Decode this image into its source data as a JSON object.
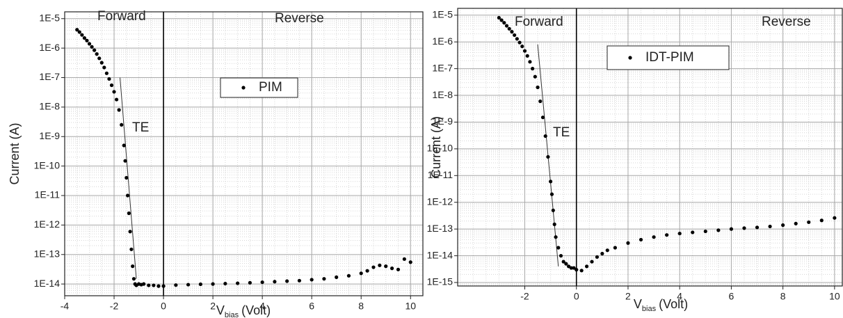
{
  "chart_data": [
    {
      "type": "scatter",
      "log_y": true,
      "grid": true,
      "vline": 0,
      "annotations": [
        "Forward",
        "Reverse",
        "TE"
      ],
      "ylabel": "Current (A)",
      "xlabel": {
        "main": "V",
        "sub": "bias",
        "unit": "(Volt)"
      },
      "xlim": [
        -4,
        10.5
      ],
      "xticks": [
        -4,
        -2,
        0,
        2,
        4,
        6,
        8,
        10
      ],
      "ylim": [
        4e-15,
        1.7e-05
      ],
      "yticks": [
        {
          "value": 1e-14,
          "label": "1E-14"
        },
        {
          "value": 1e-13,
          "label": "1E-13"
        },
        {
          "value": 1e-12,
          "label": "1E-12"
        },
        {
          "value": 1e-11,
          "label": "1E-11"
        },
        {
          "value": 1e-10,
          "label": "1E-10"
        },
        {
          "value": 1e-09,
          "label": "1E-9"
        },
        {
          "value": 1e-08,
          "label": "1E-8"
        },
        {
          "value": 1e-07,
          "label": "1E-7"
        },
        {
          "value": 1e-06,
          "label": "1E-6"
        },
        {
          "value": 1e-05,
          "label": "1E-5"
        }
      ],
      "fit": {
        "x": [
          -1.76,
          -1.1
        ],
        "values": [
          1e-07,
          1.5e-14
        ]
      },
      "series": [
        {
          "name": "PIM",
          "color": "#000000",
          "x": [
            -3.5,
            -3.4,
            -3.3,
            -3.2,
            -3.1,
            -3.0,
            -2.9,
            -2.8,
            -2.7,
            -2.6,
            -2.5,
            -2.4,
            -2.3,
            -2.2,
            -2.1,
            -2.0,
            -1.9,
            -1.8,
            -1.7,
            -1.6,
            -1.55,
            -1.5,
            -1.45,
            -1.4,
            -1.35,
            -1.3,
            -1.25,
            -1.2,
            -1.15,
            -1.1,
            -1.0,
            -0.9,
            -0.8,
            -0.6,
            -0.4,
            -0.2,
            0,
            0.5,
            1,
            1.5,
            2,
            2.5,
            3,
            3.5,
            4,
            4.5,
            5,
            5.5,
            6,
            6.5,
            7,
            7.5,
            8,
            8.25,
            8.5,
            8.75,
            9,
            9.25,
            9.5,
            9.75,
            10
          ],
          "values": [
            4.2e-06,
            3.5e-06,
            2.8e-06,
            2.2e-06,
            1.8e-06,
            1.4e-06,
            1.1e-06,
            8.5e-07,
            6.3e-07,
            4.5e-07,
            3.2e-07,
            2.2e-07,
            1.4e-07,
            9e-08,
            5.5e-08,
            3.3e-08,
            1.8e-08,
            8e-09,
            2.5e-09,
            5e-10,
            1.5e-10,
            4e-11,
            1e-11,
            2.5e-12,
            6e-13,
            1.5e-13,
            4e-14,
            1.5e-14,
            1e-14,
            9e-15,
            1e-14,
            9.5e-15,
            1e-14,
            9e-15,
            9e-15,
            8.5e-15,
            8.5e-15,
            9.2e-15,
            9.5e-15,
            9.8e-15,
            1e-14,
            1.03e-14,
            1.06e-14,
            1.1e-14,
            1.15e-14,
            1.2e-14,
            1.25e-14,
            1.3e-14,
            1.4e-14,
            1.5e-14,
            1.7e-14,
            1.9e-14,
            2.3e-14,
            2.8e-14,
            3.7e-14,
            4.3e-14,
            4e-14,
            3.4e-14,
            3.1e-14,
            7e-14,
            5.5e-14
          ]
        }
      ]
    },
    {
      "type": "scatter",
      "log_y": true,
      "grid": true,
      "vline": 0,
      "annotations": [
        "Forward",
        "Reverse",
        "TE"
      ],
      "ylabel": "Current (A)",
      "xlabel": {
        "main": "V",
        "sub": "bias",
        "unit": "(Volt)"
      },
      "xlim": [
        -4.6,
        10.3
      ],
      "xticks": [
        -2,
        0,
        2,
        4,
        6,
        8,
        10
      ],
      "ylim": [
        7.4e-16,
        1.8e-05
      ],
      "yticks": [
        {
          "value": 1e-15,
          "label": "1E-15"
        },
        {
          "value": 1e-14,
          "label": "1E-14"
        },
        {
          "value": 1e-13,
          "label": "1E-13"
        },
        {
          "value": 1e-12,
          "label": "1E-12"
        },
        {
          "value": 1e-11,
          "label": "1E-11"
        },
        {
          "value": 1e-10,
          "label": "1E-10"
        },
        {
          "value": 1e-09,
          "label": "1E-9"
        },
        {
          "value": 1e-08,
          "label": "1E-8"
        },
        {
          "value": 1e-07,
          "label": "1E-7"
        },
        {
          "value": 1e-06,
          "label": "1E-6"
        },
        {
          "value": 1e-05,
          "label": "1E-5"
        }
      ],
      "fit": {
        "x": [
          -1.5,
          -0.7
        ],
        "values": [
          8e-07,
          4e-15
        ]
      },
      "series": [
        {
          "name": "IDT-PIM",
          "color": "#000000",
          "x": [
            -3.0,
            -2.9,
            -2.8,
            -2.7,
            -2.6,
            -2.5,
            -2.4,
            -2.3,
            -2.2,
            -2.1,
            -2.0,
            -1.9,
            -1.8,
            -1.7,
            -1.6,
            -1.5,
            -1.4,
            -1.3,
            -1.2,
            -1.1,
            -1.0,
            -0.95,
            -0.9,
            -0.85,
            -0.8,
            -0.7,
            -0.6,
            -0.5,
            -0.4,
            -0.3,
            -0.2,
            -0.1,
            0,
            0.2,
            0.4,
            0.6,
            0.8,
            1.0,
            1.2,
            1.5,
            2,
            2.5,
            3,
            3.5,
            4,
            4.5,
            5,
            5.5,
            6,
            6.5,
            7,
            7.5,
            8,
            8.5,
            9,
            9.5,
            10
          ],
          "values": [
            8e-06,
            6.5e-06,
            5.2e-06,
            4e-06,
            3.1e-06,
            2.4e-06,
            1.8e-06,
            1.3e-06,
            9.5e-07,
            6.8e-07,
            4.6e-07,
            3e-07,
            1.8e-07,
            1e-07,
            5e-08,
            2e-08,
            6e-09,
            1.5e-09,
            3e-10,
            5e-11,
            6e-12,
            2e-12,
            5e-13,
            1.5e-13,
            5e-14,
            2e-14,
            1e-14,
            6e-15,
            5e-15,
            4e-15,
            3.5e-15,
            3.5e-15,
            3e-15,
            2.8e-15,
            4e-15,
            6e-15,
            9e-15,
            1.2e-14,
            1.6e-14,
            2e-14,
            3e-14,
            4e-14,
            5e-14,
            6e-14,
            6.8e-14,
            7.5e-14,
            8.2e-14,
            9e-14,
            1e-13,
            1.08e-13,
            1.15e-13,
            1.25e-13,
            1.4e-13,
            1.6e-13,
            1.8e-13,
            2.1e-13,
            2.6e-13
          ]
        }
      ]
    }
  ]
}
